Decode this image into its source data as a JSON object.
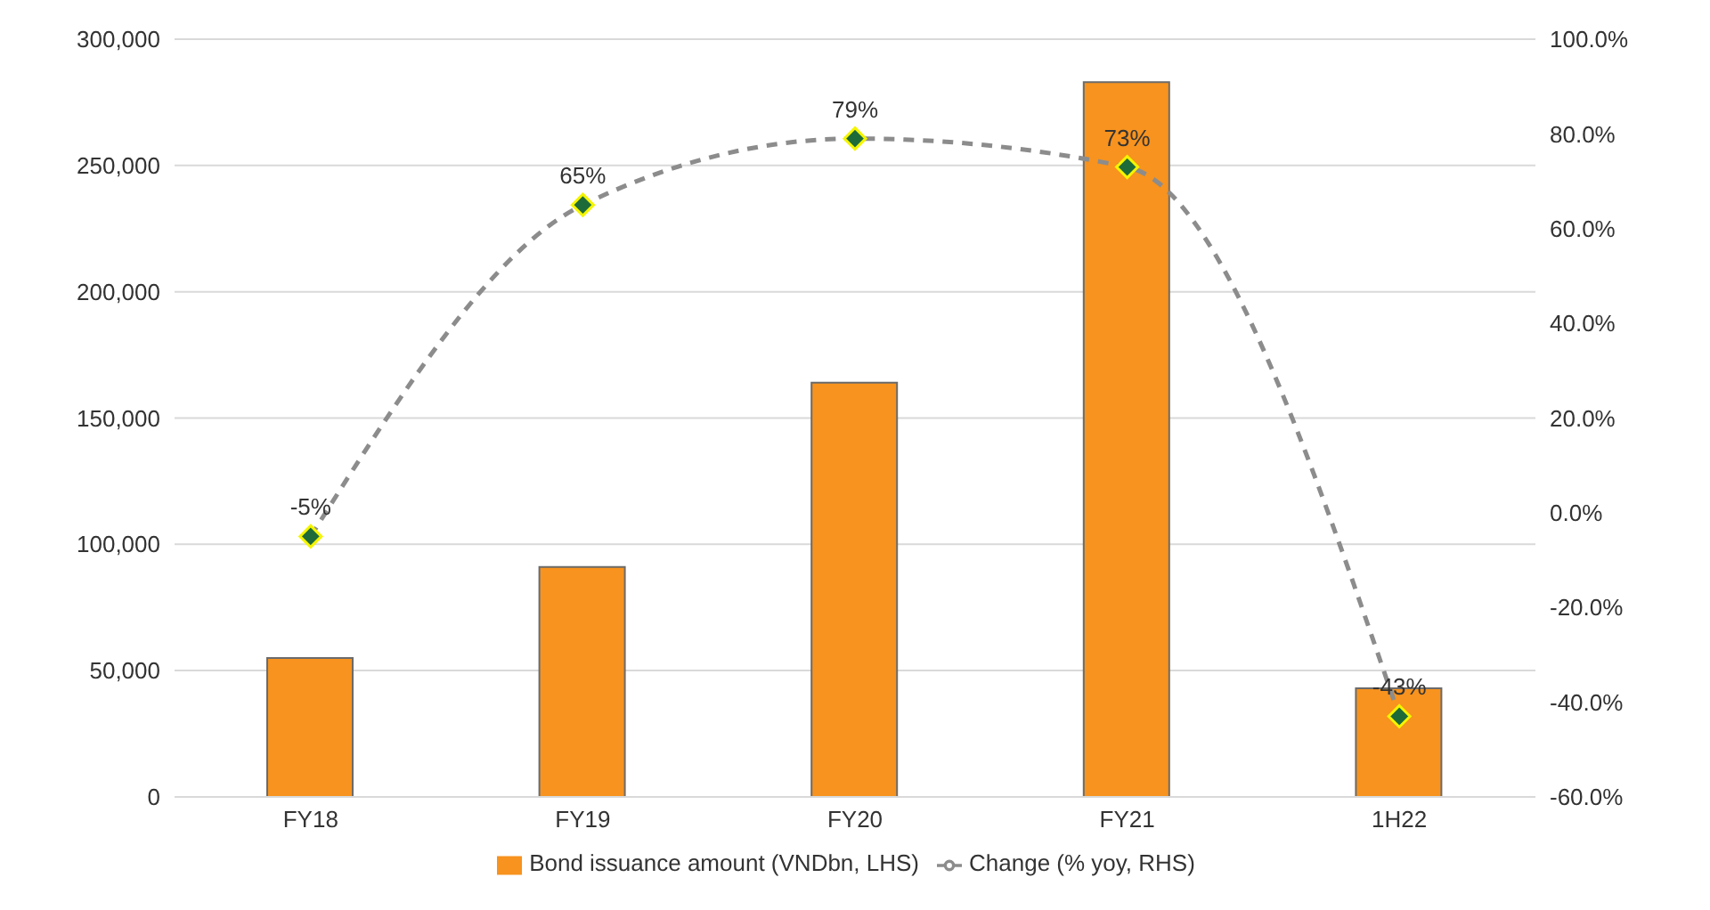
{
  "chart_data": {
    "type": "bar",
    "categories": [
      "FY18",
      "FY19",
      "FY20",
      "FY21",
      "1H22"
    ],
    "series": [
      {
        "name": "Bond issuance amount (VNDbn, LHS)",
        "color": "#f7931e",
        "values": [
          55000,
          91000,
          164000,
          283000,
          43000
        ]
      },
      {
        "name": "Change (% yoy, RHS)",
        "type": "line",
        "axis": "y2",
        "color": "#8c8c8c",
        "marker": "diamond",
        "line_style": "dashed",
        "values": [
          -5,
          65,
          79,
          73,
          -43
        ],
        "value_labels": [
          "-5%",
          "65%",
          "79%",
          "73%",
          "-43%"
        ]
      }
    ],
    "ylim": [
      0,
      300000
    ],
    "yticks": [
      {
        "value": 0,
        "label": "0"
      },
      {
        "value": 50000,
        "label": "50,000"
      },
      {
        "value": 100000,
        "label": "100,000"
      },
      {
        "value": 150000,
        "label": "150,000"
      },
      {
        "value": 200000,
        "label": "200,000"
      },
      {
        "value": 250000,
        "label": "250,000"
      },
      {
        "value": 300000,
        "label": "300,000"
      }
    ],
    "y2lim": [
      -60,
      100
    ],
    "y2ticks": [
      {
        "value": -60,
        "label": "-60.0%"
      },
      {
        "value": -40,
        "label": "-40.0%"
      },
      {
        "value": -20,
        "label": "-20.0%"
      },
      {
        "value": 0,
        "label": "0.0%"
      },
      {
        "value": 20,
        "label": "20.0%"
      },
      {
        "value": 40,
        "label": "40.0%"
      },
      {
        "value": 60,
        "label": "60.0%"
      },
      {
        "value": 80,
        "label": "80.0%"
      },
      {
        "value": 100,
        "label": "100.0%"
      }
    ],
    "grid": "y",
    "legend": "bottom"
  }
}
